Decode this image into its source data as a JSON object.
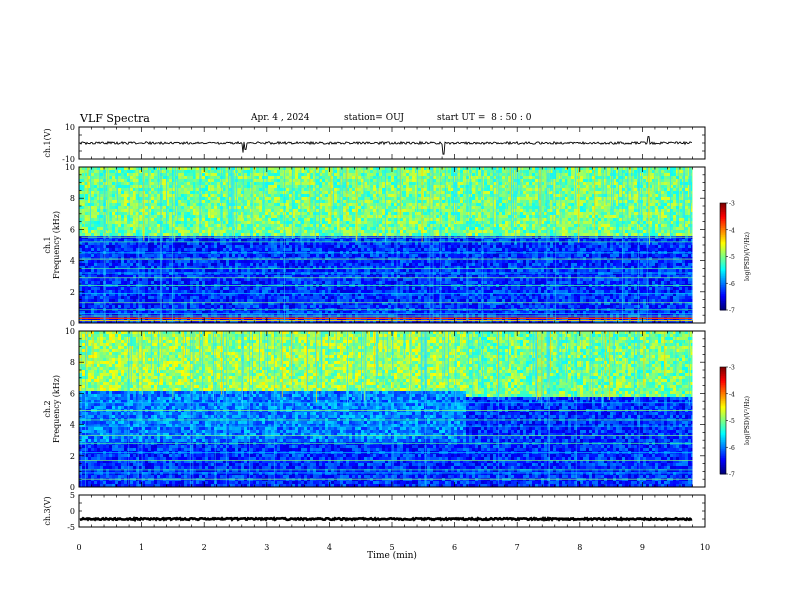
{
  "header": {
    "title": "VLF Spectra",
    "date": "Apr. 4 , 2024",
    "station": "station= OUJ",
    "start": "start UT =  8 : 50 : 0"
  },
  "chart_data": {
    "type": "heatmap",
    "x_axis": {
      "label": "Time (min)",
      "range": [
        0,
        10
      ],
      "ticks": [
        0,
        1,
        2,
        3,
        4,
        5,
        6,
        7,
        8,
        9,
        10
      ],
      "data_end": 9.8
    },
    "panels": [
      {
        "id": "ch1-waveform",
        "type": "line",
        "ylabel": "ch.1(V)",
        "yrange": [
          -10,
          10
        ],
        "yticks": [
          10,
          -10
        ],
        "baseline": 0,
        "spikes": [
          {
            "t": 2.62,
            "value": -6
          },
          {
            "t": 2.66,
            "value": -4
          },
          {
            "t": 5.82,
            "value": -7
          },
          {
            "t": 9.1,
            "value": 4
          }
        ]
      },
      {
        "id": "ch1-spectrogram",
        "type": "heatmap",
        "ylabel": "ch.1\nFrequency (kHz)",
        "yrange": [
          0,
          10
        ],
        "yticks": [
          0,
          2,
          4,
          6,
          8,
          10
        ],
        "noise_floor_khz": 5.6,
        "colorbar": {
          "label": "log(PSD)(V²/Hz)",
          "range": [
            -7,
            -3
          ],
          "ticks": [
            -3,
            -4,
            -5,
            -6,
            -7
          ]
        }
      },
      {
        "id": "ch2-spectrogram",
        "type": "heatmap",
        "ylabel": "ch.2\nFrequency (kHz)",
        "yrange": [
          0,
          10
        ],
        "yticks": [
          0,
          2,
          4,
          6,
          8,
          10
        ],
        "noise_floor_khz": 6.2,
        "transition_min": 6.15,
        "colorbar": {
          "label": "log(PSD)(V²/Hz)",
          "range": [
            -7,
            -3
          ],
          "ticks": [
            -3,
            -4,
            -5,
            -6,
            -7
          ]
        }
      },
      {
        "id": "ch3-waveform",
        "type": "line",
        "ylabel": "ch.3(V)",
        "yrange": [
          -5,
          5
        ],
        "yticks": [
          5,
          0,
          -5
        ],
        "baseline": -2.5
      }
    ]
  }
}
